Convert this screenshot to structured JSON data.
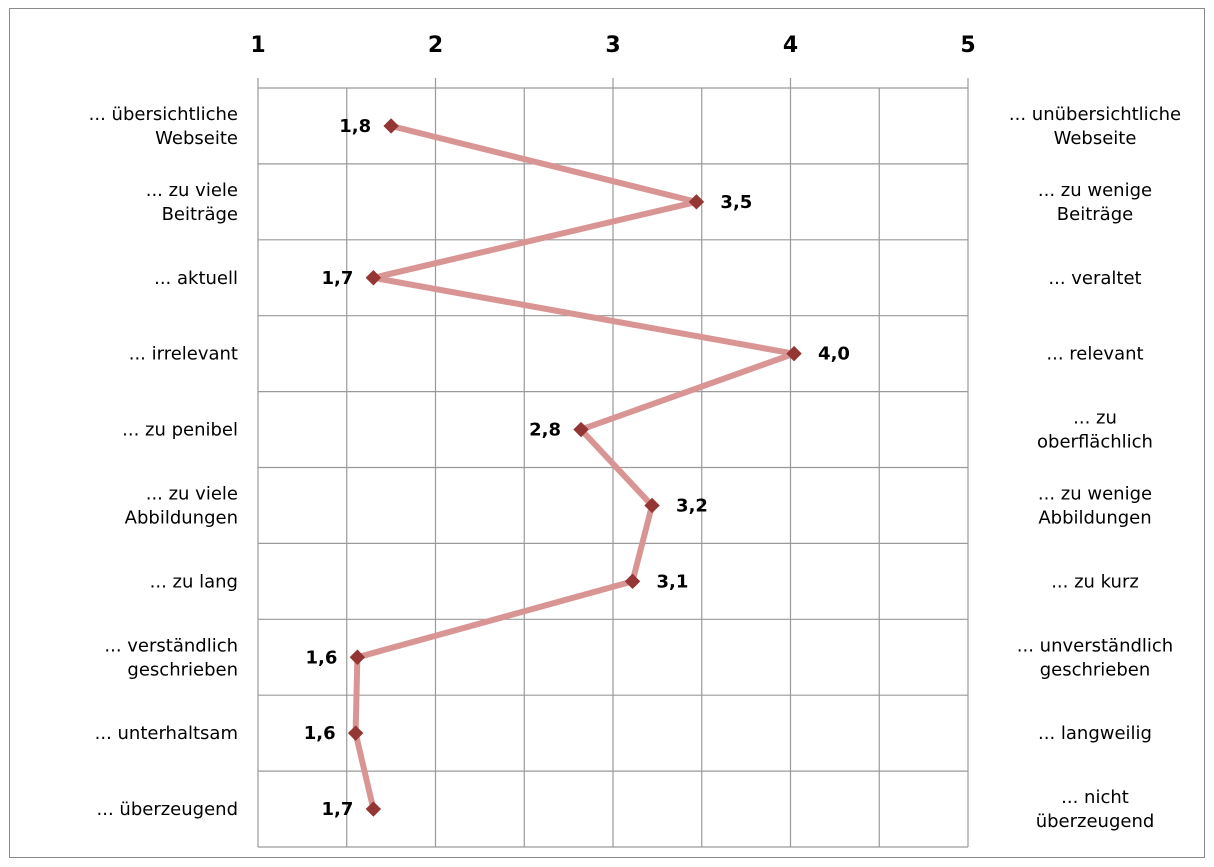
{
  "chart_data": {
    "type": "line",
    "orientation": "horizontal",
    "x_ticks": [
      "1",
      "2",
      "3",
      "4",
      "5"
    ],
    "xlim": [
      1,
      5
    ],
    "grid": true,
    "line_color": "#d99594",
    "marker_color": "#943634",
    "marker": "diamond",
    "rows": [
      {
        "left": "... übersichtliche Webseite",
        "right": "... unübersichtliche Webseite",
        "value": 1.75,
        "label": "1,8"
      },
      {
        "left": "... zu viele Beiträge",
        "right": "... zu wenige Beiträge",
        "value": 3.47,
        "label": "3,5"
      },
      {
        "left": "... aktuell",
        "right": "... veraltet",
        "value": 1.65,
        "label": "1,7"
      },
      {
        "left": "... irrelevant",
        "right": "... relevant",
        "value": 4.02,
        "label": "4,0"
      },
      {
        "left": "... zu penibel",
        "right": "... zu oberflächlich",
        "value": 2.82,
        "label": "2,8"
      },
      {
        "left": "... zu viele Abbildungen",
        "right": "... zu wenige Abbildungen",
        "value": 3.22,
        "label": "3,2"
      },
      {
        "left": "... zu lang",
        "right": "... zu kurz",
        "value": 3.11,
        "label": "3,1"
      },
      {
        "left": "... verständlich geschrieben",
        "right": "... unverständlich geschrieben",
        "value": 1.56,
        "label": "1,6"
      },
      {
        "left": "... unterhaltsam",
        "right": "... langweilig",
        "value": 1.55,
        "label": "1,6"
      },
      {
        "left": "... überzeugend",
        "right": "... nicht überzeugend",
        "value": 1.65,
        "label": "1,7"
      }
    ]
  }
}
